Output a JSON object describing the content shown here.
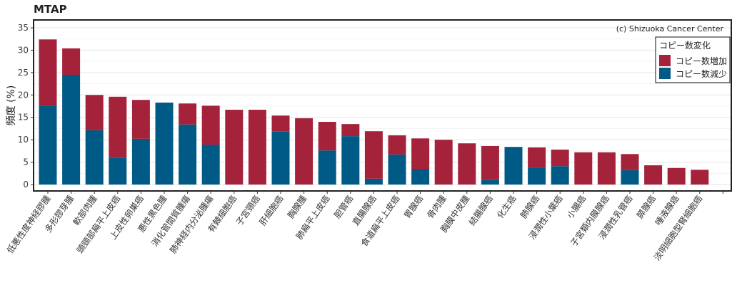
{
  "chart_data": {
    "type": "bar",
    "stacked": true,
    "title": "MTAP",
    "ylabel": "頻度 (%)",
    "xlabel": "",
    "ylim": [
      0,
      35
    ],
    "yticks": [
      0,
      5,
      10,
      15,
      20,
      25,
      30,
      35
    ],
    "grid": true,
    "credit": "(c) Shizuoka Cancer Center",
    "legend": {
      "title": "コピー数変化",
      "position": "top-right"
    },
    "categories": [
      "低悪性度神経膠腫",
      "多形膠芽腫",
      "軟部肉腫",
      "頭頸部扁平上皮癌",
      "上皮性卵巣癌",
      "悪性黒色腫",
      "消化管間質腫瘍",
      "肺神経内分泌腫瘍",
      "有棘細胞癌",
      "子宮頸癌",
      "肝細胞癌",
      "胸腺腫",
      "肺扁平上皮癌",
      "胆管癌",
      "直腸腺癌",
      "食道扁平上皮癌",
      "胃腺癌",
      "骨肉腫",
      "胸膜中皮腫",
      "結腸腺癌",
      "化生癌",
      "肺腺癌",
      "浸潤性小葉癌",
      "小腸癌",
      "子宮類内膜腺癌",
      "浸潤性乳管癌",
      "膵腺癌",
      "唾液腺癌",
      "淡明細胞型腎細胞癌"
    ],
    "series": [
      {
        "name": "コピー数減少",
        "color": "#005A86",
        "values": [
          17.6,
          24.5,
          12.1,
          6.0,
          10.2,
          18.3,
          13.4,
          8.9,
          0,
          0,
          11.8,
          0,
          7.6,
          10.8,
          1.3,
          6.7,
          3.5,
          0,
          0,
          1.0,
          8.4,
          3.8,
          4.1,
          0,
          0,
          3.2,
          0,
          0,
          0
        ]
      },
      {
        "name": "コピー数増加",
        "color": "#A4233B",
        "values": [
          14.8,
          5.9,
          7.9,
          13.6,
          8.7,
          0,
          4.7,
          8.7,
          16.7,
          16.7,
          3.6,
          14.8,
          6.4,
          2.7,
          10.6,
          4.3,
          6.8,
          10.0,
          9.2,
          7.6,
          0,
          4.5,
          3.7,
          7.2,
          7.2,
          3.6,
          4.3,
          3.7,
          3.3
        ]
      }
    ]
  }
}
